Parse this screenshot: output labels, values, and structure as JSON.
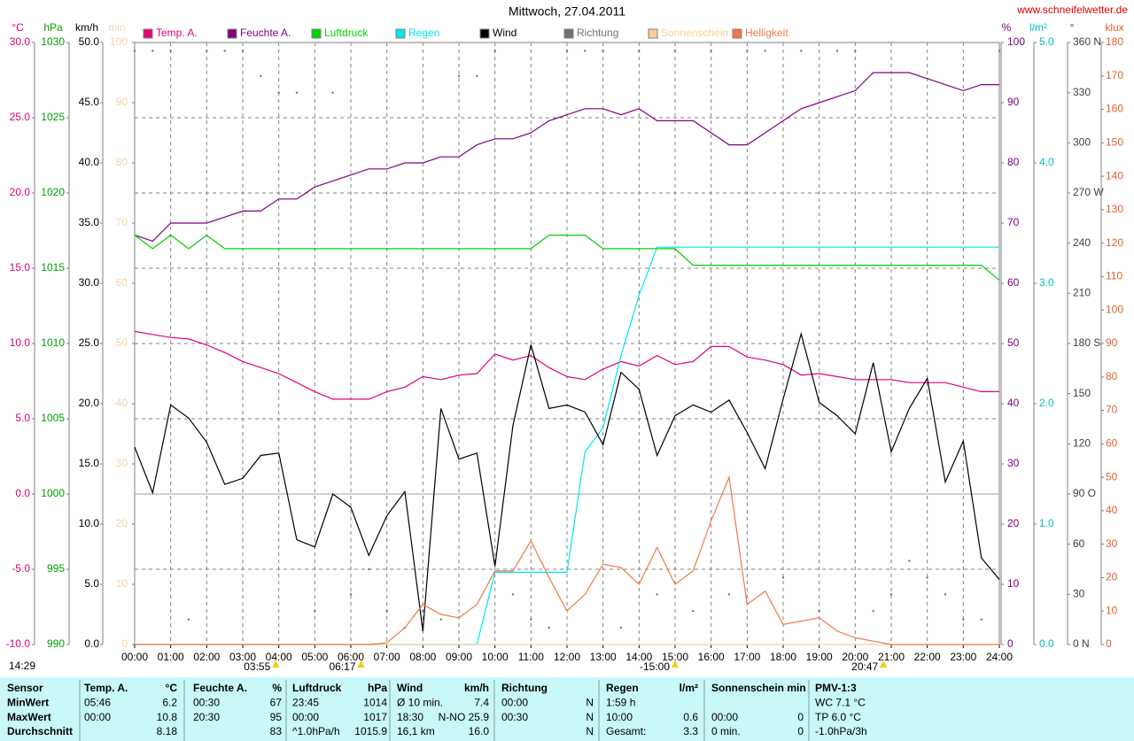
{
  "chart_data": {
    "type": "line",
    "title": "Mittwoch, 27.04.2011",
    "source": "www.schneifelwetter.de",
    "timestamp": "14:29",
    "x": [
      0,
      0.5,
      1,
      1.5,
      2,
      2.5,
      3,
      3.5,
      4,
      4.5,
      5,
      5.5,
      6,
      6.5,
      7,
      7.5,
      8,
      8.5,
      9,
      9.5,
      10,
      10.5,
      11,
      11.5,
      12,
      12.5,
      13,
      13.5,
      14,
      14.5,
      15,
      15.5,
      16,
      16.5,
      17,
      17.5,
      18,
      18.5,
      19,
      19.5,
      20,
      20.5,
      21,
      21.5,
      22,
      22.5,
      23,
      23.5,
      24
    ],
    "xlim": [
      0,
      24
    ],
    "xticks": [
      {
        "value": 0,
        "label": "00:00"
      },
      {
        "value": 1,
        "label": "01:00"
      },
      {
        "value": 2,
        "label": "02:00"
      },
      {
        "value": 3,
        "label": "03:00"
      },
      {
        "value": 4,
        "label": "04:00"
      },
      {
        "value": 5,
        "label": "05:00"
      },
      {
        "value": 6,
        "label": "06:00"
      },
      {
        "value": 7,
        "label": "07:00"
      },
      {
        "value": 8,
        "label": "08:00"
      },
      {
        "value": 9,
        "label": "09:00"
      },
      {
        "value": 10,
        "label": "10:00"
      },
      {
        "value": 11,
        "label": "11:00"
      },
      {
        "value": 12,
        "label": "12:00"
      },
      {
        "value": 13,
        "label": "13:00"
      },
      {
        "value": 14,
        "label": "14:00"
      },
      {
        "value": 15,
        "label": "15:00"
      },
      {
        "value": 16,
        "label": "16:00"
      },
      {
        "value": 17,
        "label": "17:00"
      },
      {
        "value": 18,
        "label": "18:00"
      },
      {
        "value": 19,
        "label": "19:00"
      },
      {
        "value": 20,
        "label": "20:00"
      },
      {
        "value": 21,
        "label": "21:00"
      },
      {
        "value": 22,
        "label": "22:00"
      },
      {
        "value": 23,
        "label": "23:00"
      },
      {
        "value": 24,
        "label": "24:00"
      }
    ],
    "markers": [
      {
        "value": 3.917,
        "label": "03:55"
      },
      {
        "value": 6.283,
        "label": "06:17"
      },
      {
        "value": 15,
        "label": "-15:00"
      },
      {
        "value": 20.783,
        "label": "20:47"
      }
    ],
    "grid": true,
    "y_axes": [
      {
        "unit": "°C",
        "side": "left",
        "color": "#e0007a",
        "ylim": [
          -10,
          30
        ],
        "yticks": [
          {
            "value": -10,
            "label": "-10.0"
          },
          {
            "value": -5,
            "label": "-5.0"
          },
          {
            "value": 0,
            "label": "0.0"
          },
          {
            "value": 5,
            "label": "5.0"
          },
          {
            "value": 10,
            "label": "10.0"
          },
          {
            "value": 15,
            "label": "15.0"
          },
          {
            "value": 20,
            "label": "20.0"
          },
          {
            "value": 25,
            "label": "25.0"
          },
          {
            "value": 30,
            "label": "30.0"
          }
        ]
      },
      {
        "unit": "hPa",
        "side": "left",
        "color": "#00a000",
        "ylim": [
          990,
          1030
        ],
        "yticks": [
          990,
          995,
          1000,
          1005,
          1010,
          1015,
          1020,
          1025,
          1030
        ]
      },
      {
        "unit": "km/h",
        "side": "left",
        "color": "#000000",
        "ylim": [
          0,
          50
        ],
        "yticks": [
          {
            "value": 0,
            "label": "0.0"
          },
          {
            "value": 5,
            "label": "5.0"
          },
          {
            "value": 10,
            "label": "10.0"
          },
          {
            "value": 15,
            "label": "15.0"
          },
          {
            "value": 20,
            "label": "20.0"
          },
          {
            "value": 25,
            "label": "25.0"
          },
          {
            "value": 30,
            "label": "30.0"
          },
          {
            "value": 35,
            "label": "35.0"
          },
          {
            "value": 40,
            "label": "40.0"
          },
          {
            "value": 45,
            "label": "45.0"
          },
          {
            "value": 50,
            "label": "50.0"
          }
        ]
      },
      {
        "unit": "min",
        "side": "left",
        "color": "#f4d4a4",
        "ylim": [
          0,
          100
        ],
        "yticks": [
          0,
          10,
          20,
          30,
          40,
          50,
          60,
          70,
          80,
          90,
          100
        ]
      },
      {
        "unit": "%",
        "side": "right",
        "color": "#800080",
        "ylim": [
          0,
          100
        ],
        "yticks": [
          0,
          10,
          20,
          30,
          40,
          50,
          60,
          70,
          80,
          90,
          100
        ]
      },
      {
        "unit": "l/m²",
        "side": "right",
        "color": "#00c0c0",
        "ylim": [
          0,
          5
        ],
        "yticks": [
          {
            "value": 0,
            "label": "0.0"
          },
          {
            "value": 1,
            "label": "1.0"
          },
          {
            "value": 2,
            "label": "2.0"
          },
          {
            "value": 3,
            "label": "3.0"
          },
          {
            "value": 4,
            "label": "4.0"
          },
          {
            "value": 5,
            "label": "5.0"
          }
        ]
      },
      {
        "unit": "°",
        "side": "right",
        "color": "#404040",
        "ylim": [
          0,
          360
        ],
        "yticks": [
          {
            "value": 0,
            "label": "0 N"
          },
          30,
          60,
          {
            "value": 90,
            "label": "90 O"
          },
          120,
          150,
          {
            "value": 180,
            "label": "180 S"
          },
          210,
          240,
          {
            "value": 270,
            "label": "270 W"
          },
          300,
          330,
          {
            "value": 360,
            "label": "360 N"
          }
        ]
      },
      {
        "unit": "klux",
        "side": "right",
        "color": "#e06030",
        "ylim": [
          0,
          180
        ],
        "yticks": [
          0,
          10,
          20,
          30,
          40,
          50,
          60,
          70,
          80,
          90,
          100,
          110,
          120,
          130,
          140,
          150,
          160,
          170,
          180
        ]
      }
    ],
    "series": [
      {
        "name": "Temp. A.",
        "color": "#e0007a",
        "axis": "°C",
        "values": [
          10.8,
          10.6,
          10.4,
          10.3,
          9.9,
          9.4,
          8.8,
          8.4,
          8.0,
          7.4,
          6.8,
          6.3,
          6.3,
          6.3,
          6.8,
          7.1,
          7.8,
          7.6,
          7.9,
          8.0,
          9.3,
          8.9,
          9.2,
          8.4,
          7.8,
          7.6,
          8.3,
          8.8,
          8.5,
          9.2,
          8.6,
          8.8,
          9.8,
          9.8,
          9.1,
          8.9,
          8.6,
          7.9,
          8.0,
          7.8,
          7.6,
          7.6,
          7.6,
          7.4,
          7.4,
          7.4,
          7.1,
          6.8,
          6.8
        ]
      },
      {
        "name": "Feuchte A.",
        "color": "#800080",
        "axis": "%",
        "values": [
          68,
          67,
          70,
          70,
          70,
          71,
          72,
          72,
          74,
          74,
          76,
          77,
          78,
          79,
          79,
          80,
          80,
          81,
          81,
          83,
          84,
          84,
          85,
          87,
          88,
          89,
          89,
          88,
          89,
          87,
          87,
          87,
          85,
          83,
          83,
          85,
          87,
          89,
          90,
          91,
          92,
          95,
          95,
          95,
          94,
          93,
          92,
          93,
          93
        ]
      },
      {
        "name": "Luftdruck",
        "color": "#00d000",
        "axis": "hPa",
        "values": [
          1017.2,
          1016.3,
          1017.2,
          1016.3,
          1017.2,
          1016.3,
          1016.3,
          1016.3,
          1016.3,
          1016.3,
          1016.3,
          1016.3,
          1016.3,
          1016.3,
          1016.3,
          1016.3,
          1016.3,
          1016.3,
          1016.3,
          1016.3,
          1016.3,
          1016.3,
          1016.3,
          1017.2,
          1017.2,
          1017.2,
          1016.3,
          1016.3,
          1016.3,
          1016.3,
          1016.3,
          1015.2,
          1015.2,
          1015.2,
          1015.2,
          1015.2,
          1015.2,
          1015.2,
          1015.2,
          1015.2,
          1015.2,
          1015.2,
          1015.2,
          1015.2,
          1015.2,
          1015.2,
          1015.2,
          1015.2,
          1014.2
        ]
      },
      {
        "name": "Regen",
        "color": "#00e8e8",
        "axis": "l/m²",
        "values": [
          0,
          0,
          0,
          0,
          0,
          0,
          0,
          0,
          0,
          0,
          0,
          0,
          0,
          0,
          0,
          0,
          0,
          0,
          0,
          0,
          0.6,
          0.6,
          0.6,
          0.6,
          0.6,
          1.6,
          1.8,
          2.4,
          2.9,
          3.3,
          3.3,
          3.3,
          3.3,
          3.3,
          3.3,
          3.3,
          3.3,
          3.3,
          3.3,
          3.3,
          3.3,
          3.3,
          3.3,
          3.3,
          3.3,
          3.3,
          3.3,
          3.3,
          3.3
        ]
      },
      {
        "name": "Wind",
        "color": "#000000",
        "axis": "km/h",
        "values": [
          16.4,
          12.6,
          19.9,
          18.8,
          16.8,
          13.3,
          13.8,
          15.7,
          15.9,
          8.7,
          8.1,
          12.5,
          11.4,
          7.4,
          10.7,
          12.7,
          1.1,
          19.6,
          15.4,
          15.9,
          6.5,
          18.2,
          24.9,
          19.6,
          19.9,
          19.3,
          16.6,
          22.6,
          21.2,
          15.7,
          19.0,
          19.9,
          19.3,
          20.3,
          17.6,
          14.6,
          20.4,
          25.8,
          20.1,
          19.0,
          17.5,
          23.4,
          16.0,
          19.6,
          22.1,
          13.5,
          16.9,
          7.2,
          5.4
        ]
      },
      {
        "name": "Richtung",
        "color": "#707070",
        "axis": "°",
        "style": "points",
        "values": [
          355,
          355,
          355,
          15,
          355,
          355,
          355,
          340,
          330,
          330,
          20,
          330,
          30,
          45,
          20,
          10,
          20,
          15,
          340,
          340,
          355,
          30,
          15,
          10,
          355,
          355,
          355,
          10,
          355,
          30,
          355,
          20,
          355,
          30,
          355,
          355,
          40,
          355,
          20,
          355,
          355,
          20,
          30,
          50,
          40,
          30,
          15,
          15,
          355
        ]
      },
      {
        "name": "Sonnenschein",
        "color": "#f8d098",
        "axis": "min",
        "values": [
          0,
          0,
          0,
          0,
          0,
          0,
          0,
          0,
          0,
          0,
          0,
          0,
          0,
          0,
          0,
          0,
          0,
          0,
          0,
          0,
          0,
          0,
          0,
          0,
          0,
          0,
          0,
          0,
          0,
          0,
          0,
          0,
          0,
          0,
          0,
          0,
          0,
          0,
          0,
          0,
          0,
          0,
          0,
          0,
          0,
          0,
          0,
          0,
          0
        ]
      },
      {
        "name": "Helligkeit",
        "color": "#f07848",
        "axis": "klux",
        "values": [
          0,
          0,
          0,
          0,
          0,
          0,
          0,
          0,
          0,
          0,
          0,
          0,
          0,
          0,
          0.5,
          5,
          12,
          9,
          8,
          12,
          22,
          22,
          31,
          20,
          10,
          15,
          24,
          23,
          18,
          29,
          18,
          22,
          37,
          50,
          12,
          16,
          6,
          7,
          8,
          4,
          2,
          1,
          0,
          0,
          0,
          0,
          0,
          0,
          0
        ]
      }
    ]
  },
  "table": {
    "header": {
      "label": "Sensor",
      "cells": [
        [
          "Temp. A.",
          "°C"
        ],
        [
          "Feuchte A.",
          "%"
        ],
        [
          "Luftdruck",
          "hPa"
        ],
        [
          "Wind",
          "km/h"
        ],
        [
          "Richtung",
          null
        ],
        [
          "Regen",
          "l/m²"
        ],
        [
          "Sonnenschein min",
          null
        ],
        [
          "PMV-1:3",
          null
        ]
      ]
    },
    "rows": [
      {
        "label": "MinWert",
        "cells": [
          [
            "05:46",
            "6.2"
          ],
          [
            "00:30",
            "67"
          ],
          [
            "23:45",
            "1014"
          ],
          [
            "Ø 10 min.",
            "7.4"
          ],
          [
            "00:00",
            "N"
          ],
          [
            "1:59 h",
            null
          ],
          [
            null,
            null
          ],
          [
            "WC 7.1 °C",
            null
          ]
        ]
      },
      {
        "label": "MaxWert",
        "cells": [
          [
            "00:00",
            "10.8"
          ],
          [
            "20:30",
            "95"
          ],
          [
            "00:00",
            "1017"
          ],
          [
            "18:30",
            "N-NO 25.9"
          ],
          [
            "00:30",
            "N"
          ],
          [
            "10:00",
            "0.6"
          ],
          [
            "00:00",
            "0"
          ],
          [
            "TP 6.0 °C",
            null
          ]
        ]
      },
      {
        "label": "Durchschnitt",
        "cells": [
          [
            null,
            "8.18"
          ],
          [
            null,
            "83"
          ],
          [
            "^1.0hPa/h",
            "1015.9"
          ],
          [
            "16,1 km",
            "16.0"
          ],
          [
            null,
            "N"
          ],
          [
            "Gesamt:",
            "3.3"
          ],
          [
            "0 min.",
            "0"
          ],
          [
            "-1.0hPa/3h",
            null
          ]
        ]
      }
    ]
  }
}
